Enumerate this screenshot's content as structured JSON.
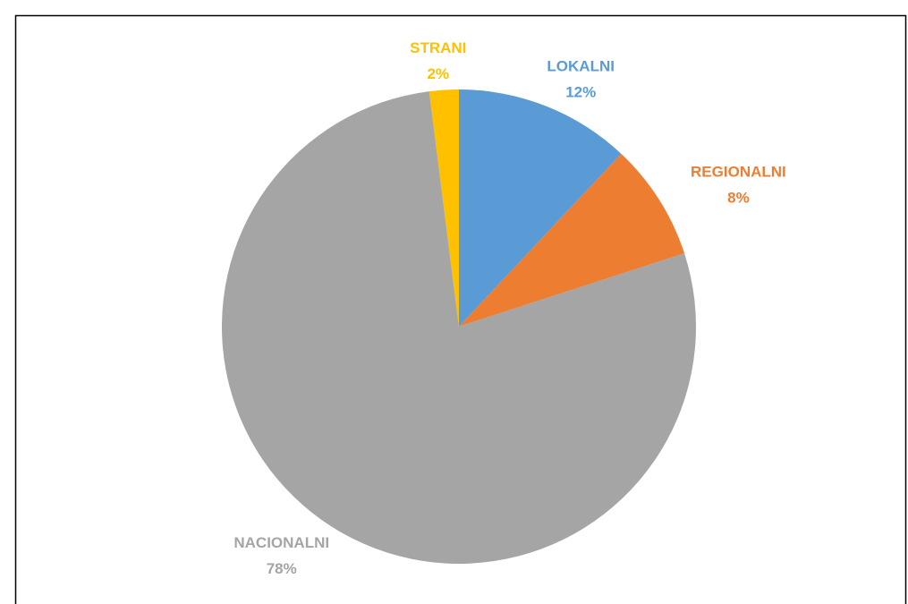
{
  "chart_data": {
    "type": "pie",
    "categories": [
      "LOKALNI",
      "REGIONALNI",
      "NACIONALNI",
      "STRANI"
    ],
    "values": [
      12,
      8,
      78,
      2
    ],
    "value_labels": [
      "12%",
      "8%",
      "78%",
      "2%"
    ],
    "colors": [
      "#5b9bd5",
      "#ed7d31",
      "#a5a5a5",
      "#ffc000"
    ]
  }
}
